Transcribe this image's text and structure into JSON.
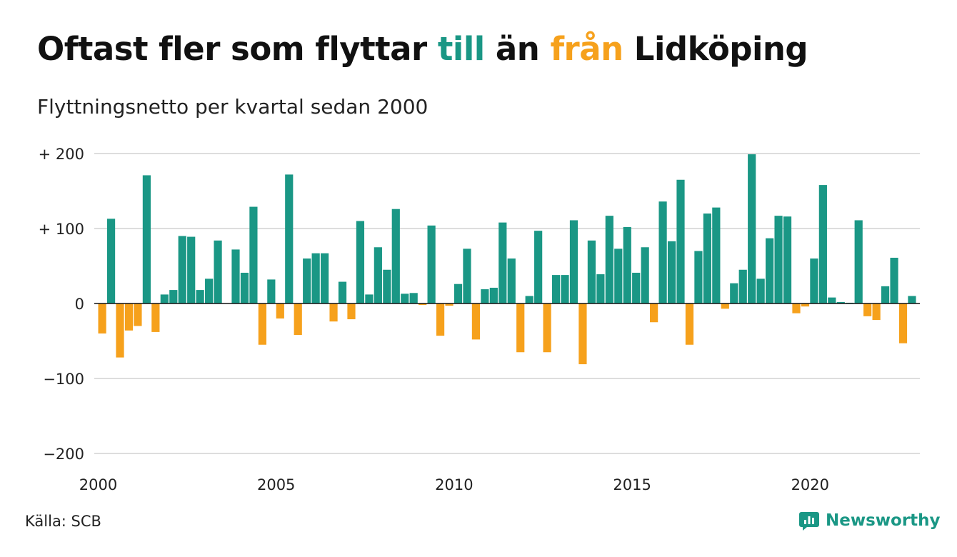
{
  "title": {
    "part1": "Oftast fler som flyttar ",
    "till": "till",
    "part2": " än ",
    "fran": "från",
    "part3": " Lidköping"
  },
  "subtitle": "Flyttningsnetto per kvartal sedan 2000",
  "source": "Källa: SCB",
  "brand": {
    "name": "Newsworthy",
    "logo_icon": "newsworthy-logo-icon"
  },
  "colors": {
    "positive": "#1a9785",
    "negative": "#f6a11c",
    "grid": "#dddddd",
    "text": "#111111"
  },
  "chart_data": {
    "type": "bar",
    "title": "Oftast fler som flyttar till än från Lidköping",
    "subtitle": "Flyttningsnetto per kvartal sedan 2000",
    "xlabel": "",
    "ylabel": "",
    "x_unit": "quarter",
    "x_start": "2000 Q1",
    "x_ticks": [
      "2000",
      "2005",
      "2010",
      "2015",
      "2020"
    ],
    "y_ticks": [
      {
        "value": 200,
        "label": "+ 200"
      },
      {
        "value": 100,
        "label": "+ 100"
      },
      {
        "value": 0,
        "label": "0"
      },
      {
        "value": -100,
        "label": "−100"
      },
      {
        "value": -200,
        "label": "−200"
      }
    ],
    "ylim": [
      -200,
      200
    ],
    "grid": true,
    "values": [
      -40,
      113,
      -72,
      -36,
      -30,
      171,
      -38,
      12,
      18,
      90,
      89,
      18,
      33,
      84,
      0,
      72,
      41,
      129,
      -55,
      32,
      -20,
      172,
      -42,
      60,
      67,
      67,
      -24,
      29,
      -21,
      110,
      12,
      75,
      45,
      126,
      13,
      14,
      -2,
      104,
      -43,
      -3,
      26,
      73,
      -48,
      19,
      21,
      108,
      60,
      -65,
      10,
      97,
      -65,
      38,
      38,
      111,
      -81,
      84,
      39,
      117,
      73,
      102,
      41,
      75,
      -25,
      136,
      83,
      165,
      -55,
      70,
      120,
      128,
      -7,
      27,
      45,
      199,
      33,
      87,
      117,
      116,
      -13,
      -4,
      60,
      158,
      8,
      2,
      1,
      111,
      -17,
      -22,
      23,
      61,
      -53,
      10
    ]
  }
}
